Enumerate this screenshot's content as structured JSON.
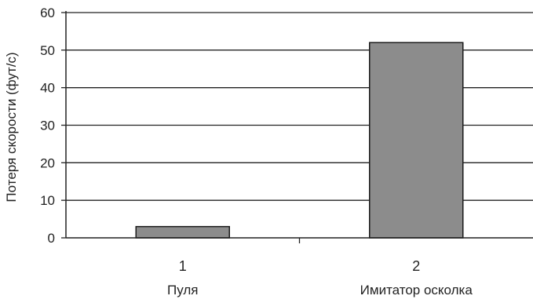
{
  "chart_data": {
    "type": "bar",
    "categories": [
      "1",
      "2"
    ],
    "category_names": [
      "Пуля",
      "Имитатор осколка"
    ],
    "values": [
      3,
      52
    ],
    "ylabel": "Потеря скорости (фут/с)",
    "xlabel": "",
    "ylim": [
      0,
      60
    ],
    "yticks": [
      0,
      10,
      20,
      30,
      40,
      50,
      60
    ],
    "grid": true,
    "bar_color": "#8c8c8c",
    "legend": "none"
  }
}
